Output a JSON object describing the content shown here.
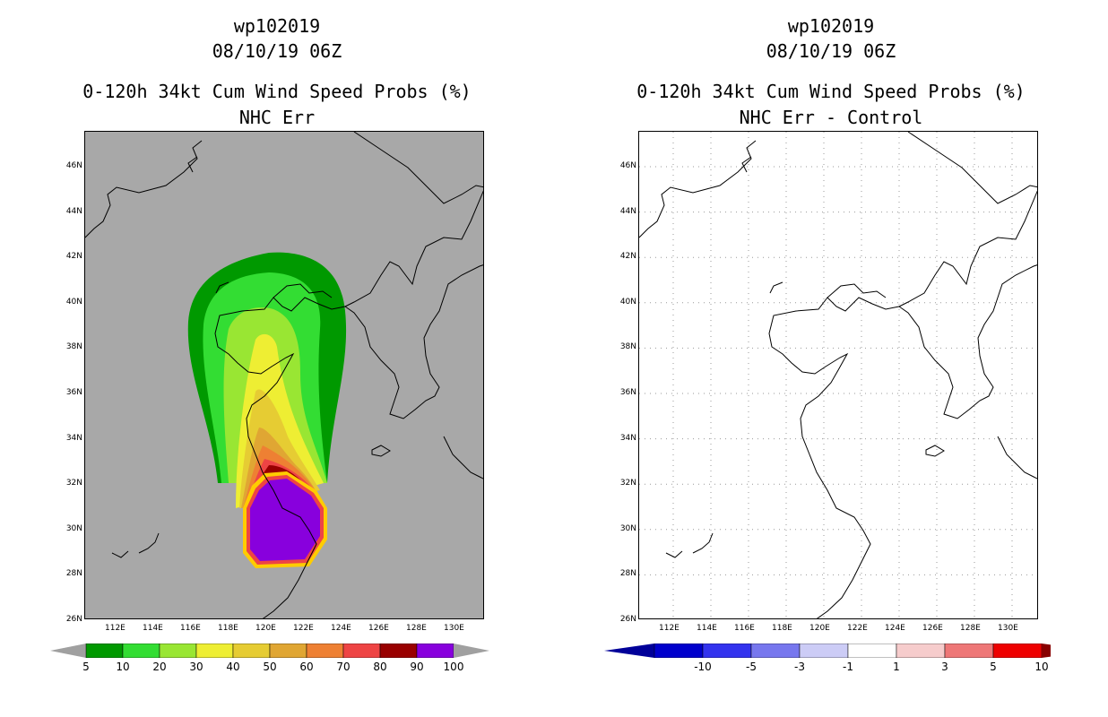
{
  "left": {
    "storm_id": "wp102019",
    "datetime": "08/10/19 06Z",
    "product": "0-120h 34kt Cum Wind Speed Probs (%)",
    "subtitle": "NHC Err",
    "lat_labels": [
      "46N",
      "44N",
      "42N",
      "40N",
      "38N",
      "36N",
      "34N",
      "32N",
      "30N",
      "28N",
      "26N"
    ],
    "lon_labels": [
      "112E",
      "114E",
      "116E",
      "118E",
      "120E",
      "122E",
      "124E",
      "126E",
      "128E",
      "130E"
    ],
    "colorbar": {
      "labels": [
        "5",
        "10",
        "20",
        "30",
        "40",
        "50",
        "60",
        "70",
        "80",
        "90",
        "100"
      ],
      "colors": [
        "#009900",
        "#33dd33",
        "#99e633",
        "#eeee33",
        "#e6cc33",
        "#e0a633",
        "#ee8033",
        "#ee4444",
        "#990000",
        "#8800dd"
      ],
      "end_color": "#a0a0a0"
    },
    "background_color": "#a8a8a8"
  },
  "right": {
    "storm_id": "wp102019",
    "datetime": "08/10/19 06Z",
    "product": "0-120h 34kt Cum Wind Speed Probs (%)",
    "subtitle": "NHC Err - Control",
    "lat_labels": [
      "46N",
      "44N",
      "42N",
      "40N",
      "38N",
      "36N",
      "34N",
      "32N",
      "30N",
      "28N",
      "26N"
    ],
    "lon_labels": [
      "112E",
      "114E",
      "116E",
      "118E",
      "120E",
      "122E",
      "124E",
      "126E",
      "128E",
      "130E"
    ],
    "colorbar": {
      "labels": [
        "-10",
        "-5",
        "-3",
        "-1",
        "1",
        "3",
        "5",
        "10"
      ],
      "colors": [
        "#0000cc",
        "#3333ee",
        "#7777ee",
        "#ccccf6",
        "#ffffff",
        "#f6cccc",
        "#ee7777",
        "#ee0000"
      ],
      "end_left": "#000099",
      "end_right": "#880000"
    },
    "background_color": "#ffffff"
  }
}
